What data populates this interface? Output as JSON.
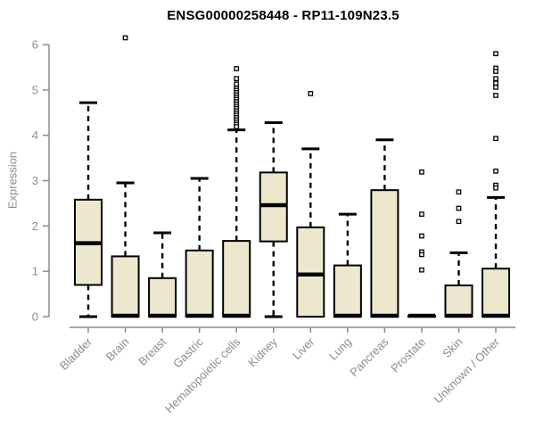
{
  "chart_data": {
    "type": "boxplot",
    "title": "ENSG00000258448 - RP11-109N23.5",
    "ylabel": "Expression",
    "xlabel": "",
    "ylim": [
      0,
      6.3
    ],
    "yticks": [
      0,
      1,
      2,
      3,
      4,
      5,
      6
    ],
    "grid": false,
    "legend": "none",
    "categories": [
      "Bladder",
      "Brain",
      "Breast",
      "Gastric",
      "Hematopoietic cells",
      "Kidney",
      "Liver",
      "Lung",
      "Pancreas",
      "Prostate",
      "Skin",
      "Unknown / Other"
    ],
    "boxes": [
      {
        "category": "Bladder",
        "whisker_low": 0,
        "q1": 0.7,
        "median": 1.62,
        "q3": 2.58,
        "whisker_high": 4.72,
        "outliers": []
      },
      {
        "category": "Brain",
        "whisker_low": 0,
        "q1": 0,
        "median": 0.02,
        "q3": 1.33,
        "whisker_high": 2.95,
        "outliers": [
          6.15
        ]
      },
      {
        "category": "Breast",
        "whisker_low": 0,
        "q1": 0,
        "median": 0.02,
        "q3": 0.85,
        "whisker_high": 1.85,
        "outliers": []
      },
      {
        "category": "Gastric",
        "whisker_low": 0,
        "q1": 0,
        "median": 0.02,
        "q3": 1.46,
        "whisker_high": 3.05,
        "outliers": []
      },
      {
        "category": "Hematopoietic cells",
        "whisker_low": 0,
        "q1": 0,
        "median": 0.02,
        "q3": 1.67,
        "whisker_high": 4.12,
        "outliers": [
          5.47,
          5.25,
          5.13,
          5.04,
          4.99,
          4.94,
          4.89,
          4.84,
          4.79,
          4.74,
          4.69,
          4.64,
          4.59,
          4.54,
          4.49,
          4.44,
          4.39,
          4.34,
          4.29,
          4.24,
          4.19
        ]
      },
      {
        "category": "Kidney",
        "whisker_low": 0,
        "q1": 1.66,
        "median": 2.46,
        "q3": 3.18,
        "whisker_high": 4.28,
        "outliers": []
      },
      {
        "category": "Liver",
        "whisker_low": 0,
        "q1": 0,
        "median": 0.93,
        "q3": 1.97,
        "whisker_high": 3.7,
        "outliers": [
          4.92
        ]
      },
      {
        "category": "Lung",
        "whisker_low": 0,
        "q1": 0,
        "median": 0.02,
        "q3": 1.13,
        "whisker_high": 2.26,
        "outliers": []
      },
      {
        "category": "Pancreas",
        "whisker_low": 0,
        "q1": 0,
        "median": 0.02,
        "q3": 2.79,
        "whisker_high": 3.9,
        "outliers": []
      },
      {
        "category": "Prostate",
        "whisker_low": 0,
        "q1": 0,
        "median": 0.02,
        "q3": 0.02,
        "whisker_high": 0.02,
        "outliers": [
          3.19,
          2.26,
          1.78,
          1.43,
          1.37,
          1.03
        ]
      },
      {
        "category": "Skin",
        "whisker_low": 0,
        "q1": 0,
        "median": 0.02,
        "q3": 0.69,
        "whisker_high": 1.41,
        "outliers": [
          2.75,
          2.39,
          2.1
        ]
      },
      {
        "category": "Unknown / Other",
        "whisker_low": 0,
        "q1": 0,
        "median": 0.02,
        "q3": 1.06,
        "whisker_high": 2.63,
        "outliers": [
          5.8,
          5.48,
          5.41,
          5.25,
          5.15,
          5.06,
          4.88,
          3.93,
          3.21,
          2.9,
          2.84
        ]
      }
    ],
    "colors": {
      "box_fill": "#EDE8CD",
      "box_stroke": "#000000",
      "median": "#000000",
      "whisker": "#000000",
      "outlier_fill": "#FFFFFF",
      "axis": "#8C8C8C",
      "tick_label": "#8C8C8C",
      "title": "#000000",
      "background": "#FFFFFF"
    }
  }
}
